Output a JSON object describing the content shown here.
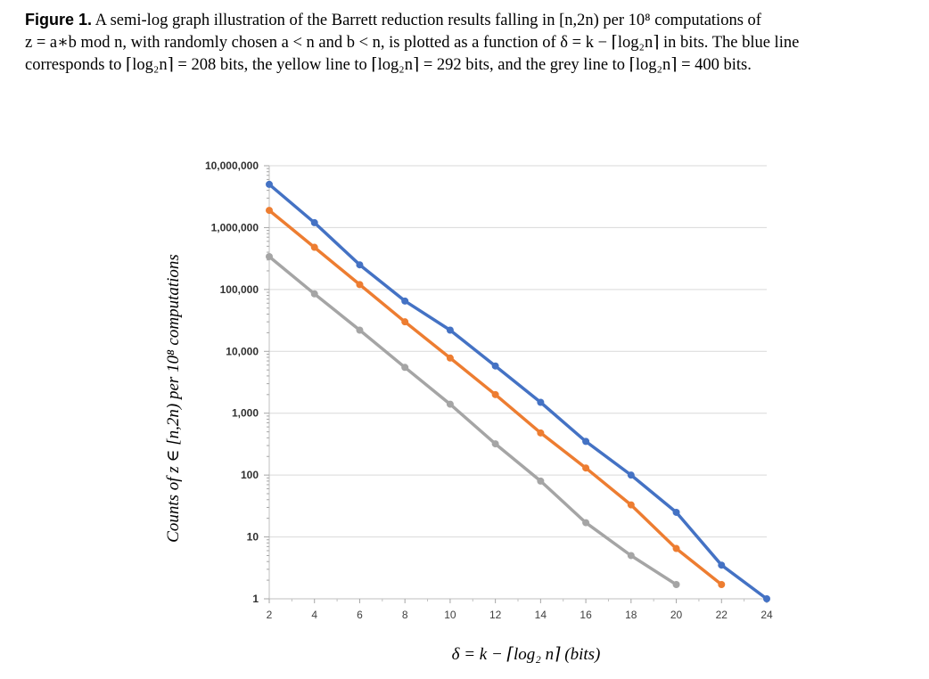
{
  "caption": {
    "label": "Figure 1.",
    "line1": " A semi-log graph illustration of the Barrett reduction results falling in [n,2n) per 10⁸ computations of",
    "line2": "z = a∗b mod n, with randomly chosen a < n and b < n, is plotted as a function of δ = k − ⌈log₂n⌉ in bits. The blue line",
    "line3": "corresponds to ⌈log₂n⌉ = 208 bits, the yellow line to ⌈log₂n⌉ = 292 bits, and the grey line to ⌈log₂n⌉ = 400 bits."
  },
  "chart_data": {
    "type": "line",
    "y_scale": "log",
    "xlabel": "δ = k − ⌈log₂ n⌉ (bits)",
    "ylabel": "Counts of z ∈ [n,2n) per 10⁸ computations",
    "xlim": [
      2,
      24
    ],
    "ylim": [
      1,
      10000000
    ],
    "x_ticks": [
      "2",
      "4",
      "6",
      "8",
      "10",
      "12",
      "14",
      "16",
      "18",
      "20",
      "22",
      "24"
    ],
    "y_ticks": [
      "1",
      "10",
      "100",
      "1,000",
      "10,000",
      "100,000",
      "1,000,000",
      "10,000,000"
    ],
    "grid": "horizontal",
    "series": [
      {
        "color": "#4472c4",
        "x": [
          2,
          4,
          6,
          8,
          10,
          12,
          14,
          16,
          18,
          20,
          22,
          24
        ],
        "y": [
          5000000,
          1200000,
          250000,
          65000,
          22000,
          5800,
          1500,
          350,
          100,
          25,
          3.5,
          1
        ]
      },
      {
        "color": "#ed7d31",
        "x": [
          2,
          4,
          6,
          8,
          10,
          12,
          14,
          16,
          18,
          20,
          22
        ],
        "y": [
          1900000,
          480000,
          120000,
          30000,
          7800,
          2000,
          480,
          130,
          33,
          6.5,
          1.7
        ]
      },
      {
        "color": "#a5a5a5",
        "x": [
          2,
          4,
          6,
          8,
          10,
          12,
          14,
          16,
          18,
          20
        ],
        "y": [
          340000,
          85000,
          22000,
          5500,
          1400,
          320,
          80,
          17,
          5,
          1.7
        ]
      }
    ]
  }
}
